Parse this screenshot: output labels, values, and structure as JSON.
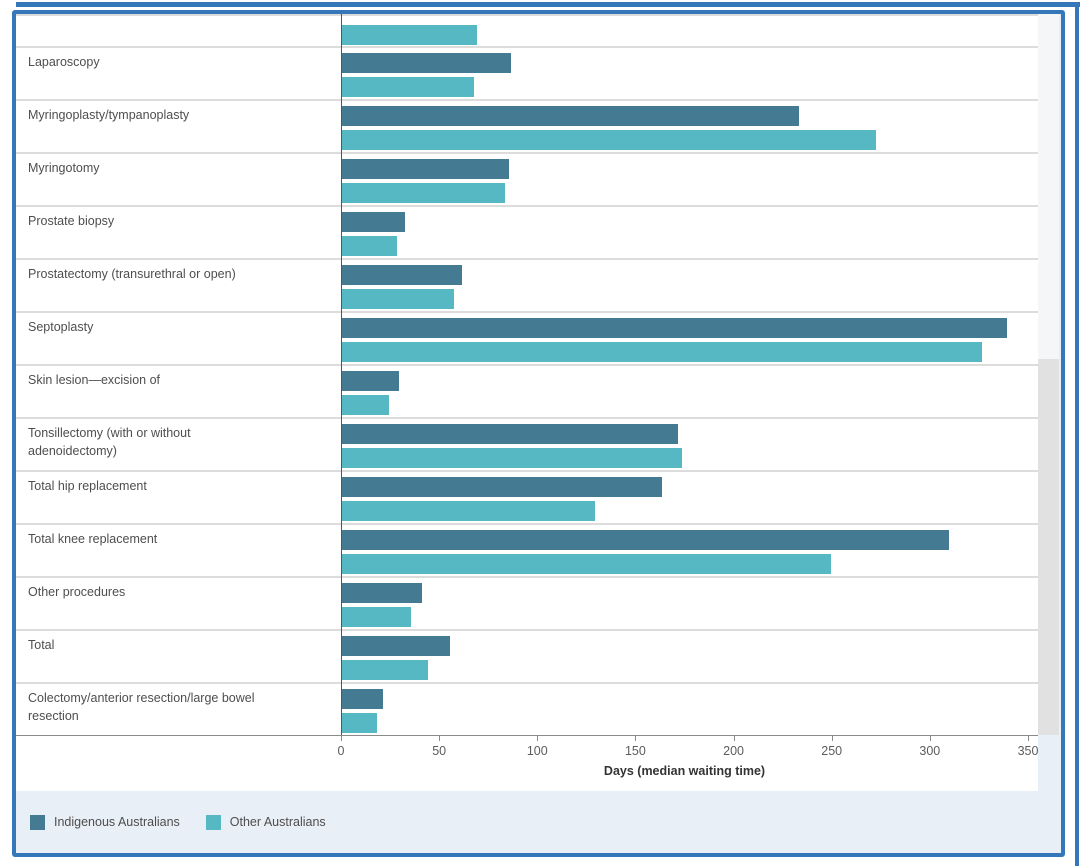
{
  "chart_data": {
    "type": "bar",
    "orientation": "horizontal",
    "title": "",
    "xlabel": "Days (median waiting time)",
    "ylabel": "",
    "x_ticks": [
      0,
      50,
      100,
      150,
      200,
      250,
      300,
      350
    ],
    "xlim": [
      0,
      355
    ],
    "grid": "off",
    "legend_position": "bottom-left",
    "series_names": [
      "Indigenous Australians",
      "Other Australians"
    ],
    "rows": [
      {
        "category": "",
        "indigenous": null,
        "other": 69,
        "partial": true
      },
      {
        "category": "Laparoscopy",
        "indigenous": 86,
        "other": 67
      },
      {
        "category": "Myringoplasty/tympanoplasty",
        "indigenous": 233,
        "other": 272
      },
      {
        "category": "Myringotomy",
        "indigenous": 85,
        "other": 83
      },
      {
        "category": "Prostate biopsy",
        "indigenous": 32,
        "other": 28
      },
      {
        "category": "Prostatectomy (transurethral or open)",
        "indigenous": 61,
        "other": 57
      },
      {
        "category": "Septoplasty",
        "indigenous": 339,
        "other": 326
      },
      {
        "category": "Skin lesion—excision of",
        "indigenous": 29,
        "other": 24
      },
      {
        "category": "Tonsillectomy (with or without adenoidectomy)",
        "indigenous": 171,
        "other": 173
      },
      {
        "category": "Total hip replacement",
        "indigenous": 163,
        "other": 129
      },
      {
        "category": "Total knee replacement",
        "indigenous": 309,
        "other": 249
      },
      {
        "category": "Other procedures",
        "indigenous": 41,
        "other": 35
      },
      {
        "category": "Total",
        "indigenous": 55,
        "other": 44
      },
      {
        "category": "Colectomy/anterior resection/large bowel resection",
        "indigenous": 21,
        "other": 18
      }
    ]
  },
  "legend": {
    "items": [
      {
        "label": "Indigenous Australians",
        "color": "#447b93"
      },
      {
        "label": "Other Australians",
        "color": "#55b8c2"
      }
    ]
  },
  "colors": {
    "indigenous_bar": "#447b93",
    "other_bar": "#55b8c2",
    "frame_blue": "#3578b9",
    "panel_background": "#e9eff6",
    "scroll_track": "#f5f6f7",
    "scroll_thumb": "#e1e1e1",
    "separator": "#dcdcdc",
    "axis_line": "#8a8a8a"
  }
}
